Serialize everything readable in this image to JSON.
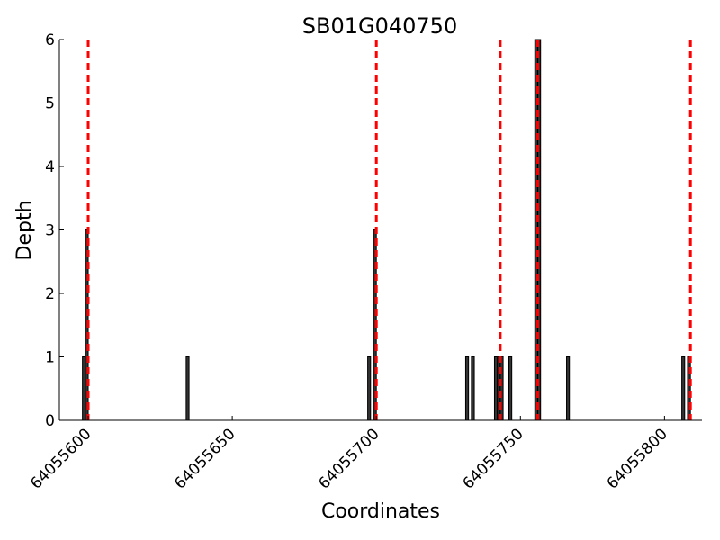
{
  "chart_data": {
    "type": "bar",
    "title": "SB01G040750",
    "xlabel": "Coordinates",
    "ylabel": "Depth",
    "xlim": [
      64055590,
      64055813
    ],
    "ylim": [
      0,
      6
    ],
    "xticks": [
      64055600,
      64055650,
      64055700,
      64055750,
      64055800
    ],
    "xtick_labels": [
      "64055600",
      "64055650",
      "64055700",
      "64055750",
      "64055800"
    ],
    "yticks": [
      0,
      1,
      2,
      3,
      4,
      5,
      6
    ],
    "ytick_labels": [
      "0",
      "1",
      "2",
      "3",
      "4",
      "5",
      "6"
    ],
    "bar_width": 1,
    "bar_color": "#333333",
    "bars": [
      {
        "x": 64055598,
        "y": 1
      },
      {
        "x": 64055599,
        "y": 3
      },
      {
        "x": 64055634,
        "y": 1
      },
      {
        "x": 64055697,
        "y": 1
      },
      {
        "x": 64055699,
        "y": 3
      },
      {
        "x": 64055731,
        "y": 1
      },
      {
        "x": 64055733,
        "y": 1
      },
      {
        "x": 64055741,
        "y": 1
      },
      {
        "x": 64055742,
        "y": 1
      },
      {
        "x": 64055743,
        "y": 1
      },
      {
        "x": 64055746,
        "y": 1
      },
      {
        "x": 64055755,
        "y": 6
      },
      {
        "x": 64055756,
        "y": 6
      },
      {
        "x": 64055766,
        "y": 1
      },
      {
        "x": 64055806,
        "y": 1
      },
      {
        "x": 64055808,
        "y": 1
      }
    ],
    "reference_lines": {
      "color": "#ff0000",
      "style": "dashed",
      "x": [
        64055600,
        64055700,
        64055743,
        64055756,
        64055809
      ]
    },
    "grid": false
  }
}
